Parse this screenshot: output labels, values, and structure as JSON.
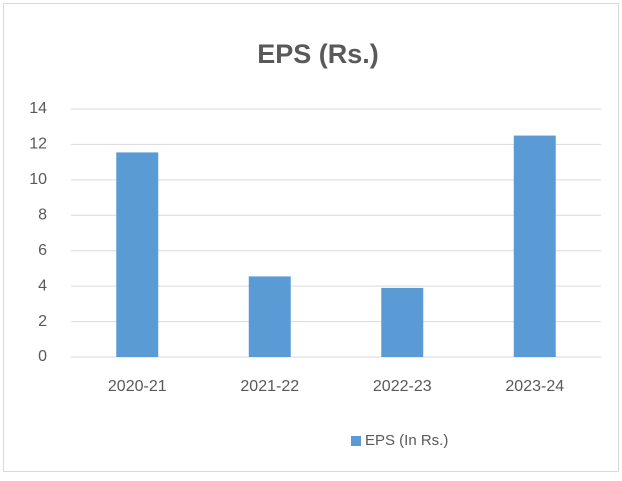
{
  "chart_data": {
    "type": "bar",
    "title": "EPS (Rs.)",
    "categories": [
      "2020-21",
      "2021-22",
      "2022-23",
      "2023-24"
    ],
    "series": [
      {
        "name": "EPS (In Rs.)",
        "color": "#5b9bd5",
        "values": [
          11.55,
          4.55,
          3.9,
          12.5
        ]
      }
    ],
    "ylim": [
      0,
      14
    ],
    "yticks": [
      0,
      2,
      4,
      6,
      8,
      10,
      12,
      14
    ],
    "grid": true,
    "legend": "bottom"
  }
}
